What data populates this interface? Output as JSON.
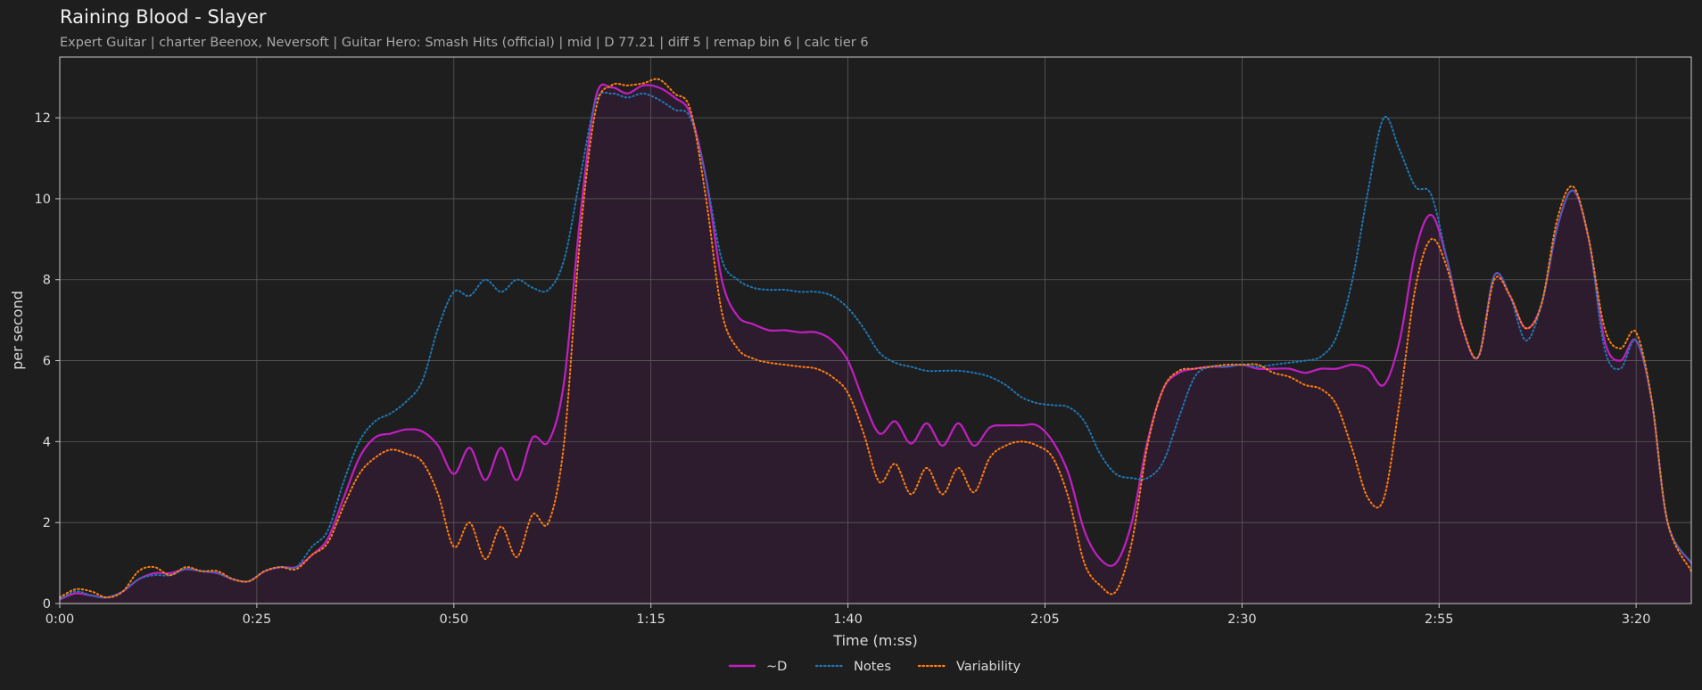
{
  "chart_data": {
    "type": "line",
    "title": "Raining Blood - Slayer",
    "subtitle": "Expert Guitar  |  charter Beenox,  Neversoft  |  Guitar Hero: Smash Hits (official)  |  mid  |  D 77.21  |  diff 5  |  remap bin 6  |  calc tier 6",
    "xlabel": "Time (m:ss)",
    "ylabel": "per second",
    "xlim": [
      0,
      207
    ],
    "ylim": [
      0,
      13.5
    ],
    "x_ticks": [
      0,
      25,
      50,
      75,
      100,
      125,
      150,
      175,
      200
    ],
    "x_tick_labels": [
      "0:00",
      "0:25",
      "0:50",
      "1:15",
      "1:40",
      "2:05",
      "2:30",
      "2:55",
      "3:20"
    ],
    "y_ticks": [
      0,
      2,
      4,
      6,
      8,
      10,
      12
    ],
    "y_tick_labels": [
      "0",
      "2",
      "4",
      "6",
      "8",
      "10",
      "12"
    ],
    "grid": true,
    "legend_position": "bottom-center",
    "colors": {
      "background": "#1e1e1e",
      "fill": "#2d1c2d",
      "grid": "#5a5a5a",
      "axis": "#c8c8c8",
      "text": "#dcdcdc",
      "subtitle": "#a8a8a8"
    },
    "series": [
      {
        "name": "~D",
        "color": "#c020c0",
        "style": "solid",
        "fill": true,
        "points": [
          [
            0,
            0.1
          ],
          [
            2,
            0.25
          ],
          [
            4,
            0.2
          ],
          [
            6,
            0.15
          ],
          [
            8,
            0.3
          ],
          [
            10,
            0.6
          ],
          [
            12,
            0.75
          ],
          [
            14,
            0.75
          ],
          [
            16,
            0.85
          ],
          [
            18,
            0.8
          ],
          [
            20,
            0.75
          ],
          [
            22,
            0.6
          ],
          [
            24,
            0.55
          ],
          [
            26,
            0.8
          ],
          [
            28,
            0.9
          ],
          [
            30,
            0.9
          ],
          [
            32,
            1.2
          ],
          [
            34,
            1.6
          ],
          [
            36,
            2.6
          ],
          [
            38,
            3.6
          ],
          [
            40,
            4.1
          ],
          [
            42,
            4.2
          ],
          [
            44,
            4.3
          ],
          [
            46,
            4.25
          ],
          [
            48,
            3.9
          ],
          [
            50,
            3.2
          ],
          [
            52,
            3.85
          ],
          [
            54,
            3.05
          ],
          [
            56,
            3.85
          ],
          [
            58,
            3.05
          ],
          [
            60,
            4.1
          ],
          [
            62,
            4.0
          ],
          [
            64,
            5.5
          ],
          [
            66,
            9.5
          ],
          [
            68,
            12.5
          ],
          [
            70,
            12.75
          ],
          [
            72,
            12.6
          ],
          [
            74,
            12.8
          ],
          [
            76,
            12.75
          ],
          [
            78,
            12.5
          ],
          [
            80,
            12.1
          ],
          [
            82,
            10.5
          ],
          [
            84,
            8.0
          ],
          [
            86,
            7.1
          ],
          [
            88,
            6.9
          ],
          [
            90,
            6.75
          ],
          [
            92,
            6.75
          ],
          [
            94,
            6.7
          ],
          [
            96,
            6.7
          ],
          [
            98,
            6.5
          ],
          [
            100,
            6.0
          ],
          [
            102,
            5.0
          ],
          [
            104,
            4.2
          ],
          [
            106,
            4.5
          ],
          [
            108,
            3.95
          ],
          [
            110,
            4.45
          ],
          [
            112,
            3.9
          ],
          [
            114,
            4.45
          ],
          [
            116,
            3.9
          ],
          [
            118,
            4.35
          ],
          [
            120,
            4.4
          ],
          [
            122,
            4.4
          ],
          [
            124,
            4.4
          ],
          [
            126,
            4.0
          ],
          [
            128,
            3.2
          ],
          [
            130,
            1.8
          ],
          [
            132,
            1.1
          ],
          [
            134,
            1.0
          ],
          [
            136,
            2.0
          ],
          [
            138,
            4.0
          ],
          [
            140,
            5.3
          ],
          [
            142,
            5.7
          ],
          [
            144,
            5.8
          ],
          [
            146,
            5.85
          ],
          [
            148,
            5.85
          ],
          [
            150,
            5.9
          ],
          [
            152,
            5.8
          ],
          [
            154,
            5.8
          ],
          [
            156,
            5.8
          ],
          [
            158,
            5.7
          ],
          [
            160,
            5.8
          ],
          [
            162,
            5.8
          ],
          [
            164,
            5.9
          ],
          [
            166,
            5.8
          ],
          [
            168,
            5.4
          ],
          [
            170,
            6.5
          ],
          [
            172,
            8.7
          ],
          [
            174,
            9.6
          ],
          [
            176,
            8.5
          ],
          [
            178,
            6.8
          ],
          [
            180,
            6.1
          ],
          [
            182,
            8.1
          ],
          [
            184,
            7.6
          ],
          [
            186,
            6.8
          ],
          [
            188,
            7.4
          ],
          [
            190,
            9.3
          ],
          [
            192,
            10.2
          ],
          [
            194,
            9.0
          ],
          [
            196,
            6.5
          ],
          [
            198,
            6.0
          ],
          [
            200,
            6.5
          ],
          [
            202,
            5.0
          ],
          [
            204,
            2.0
          ],
          [
            207,
            1.0
          ]
        ]
      },
      {
        "name": "Notes",
        "color": "#1f77b4",
        "style": "dotted",
        "fill": false,
        "points": [
          [
            0,
            0.1
          ],
          [
            2,
            0.3
          ],
          [
            4,
            0.2
          ],
          [
            6,
            0.15
          ],
          [
            8,
            0.3
          ],
          [
            10,
            0.6
          ],
          [
            12,
            0.7
          ],
          [
            14,
            0.7
          ],
          [
            16,
            0.85
          ],
          [
            18,
            0.8
          ],
          [
            20,
            0.75
          ],
          [
            22,
            0.6
          ],
          [
            24,
            0.55
          ],
          [
            26,
            0.8
          ],
          [
            28,
            0.9
          ],
          [
            30,
            0.9
          ],
          [
            32,
            1.4
          ],
          [
            34,
            1.8
          ],
          [
            36,
            3.0
          ],
          [
            38,
            4.0
          ],
          [
            40,
            4.5
          ],
          [
            42,
            4.7
          ],
          [
            44,
            5.0
          ],
          [
            46,
            5.5
          ],
          [
            48,
            6.8
          ],
          [
            50,
            7.7
          ],
          [
            52,
            7.6
          ],
          [
            54,
            8.0
          ],
          [
            56,
            7.7
          ],
          [
            58,
            8.0
          ],
          [
            60,
            7.8
          ],
          [
            62,
            7.75
          ],
          [
            64,
            8.5
          ],
          [
            66,
            10.5
          ],
          [
            68,
            12.4
          ],
          [
            70,
            12.6
          ],
          [
            72,
            12.5
          ],
          [
            74,
            12.6
          ],
          [
            76,
            12.45
          ],
          [
            78,
            12.2
          ],
          [
            80,
            12.0
          ],
          [
            82,
            10.5
          ],
          [
            84,
            8.5
          ],
          [
            86,
            8.0
          ],
          [
            88,
            7.8
          ],
          [
            90,
            7.75
          ],
          [
            92,
            7.75
          ],
          [
            94,
            7.7
          ],
          [
            96,
            7.7
          ],
          [
            98,
            7.6
          ],
          [
            100,
            7.3
          ],
          [
            102,
            6.8
          ],
          [
            104,
            6.2
          ],
          [
            106,
            5.95
          ],
          [
            108,
            5.85
          ],
          [
            110,
            5.75
          ],
          [
            112,
            5.75
          ],
          [
            114,
            5.75
          ],
          [
            116,
            5.7
          ],
          [
            118,
            5.6
          ],
          [
            120,
            5.4
          ],
          [
            122,
            5.1
          ],
          [
            124,
            4.95
          ],
          [
            126,
            4.9
          ],
          [
            128,
            4.85
          ],
          [
            130,
            4.5
          ],
          [
            132,
            3.7
          ],
          [
            134,
            3.2
          ],
          [
            136,
            3.1
          ],
          [
            138,
            3.1
          ],
          [
            140,
            3.5
          ],
          [
            142,
            4.6
          ],
          [
            144,
            5.6
          ],
          [
            146,
            5.85
          ],
          [
            148,
            5.85
          ],
          [
            150,
            5.9
          ],
          [
            152,
            5.85
          ],
          [
            154,
            5.9
          ],
          [
            156,
            5.95
          ],
          [
            158,
            6.0
          ],
          [
            160,
            6.1
          ],
          [
            162,
            6.6
          ],
          [
            164,
            8.0
          ],
          [
            166,
            10.2
          ],
          [
            168,
            12.0
          ],
          [
            170,
            11.2
          ],
          [
            172,
            10.3
          ],
          [
            174,
            10.1
          ],
          [
            176,
            8.5
          ],
          [
            178,
            6.8
          ],
          [
            180,
            6.1
          ],
          [
            182,
            8.1
          ],
          [
            184,
            7.6
          ],
          [
            186,
            6.5
          ],
          [
            188,
            7.4
          ],
          [
            190,
            9.3
          ],
          [
            192,
            10.2
          ],
          [
            194,
            9.0
          ],
          [
            196,
            6.3
          ],
          [
            198,
            5.8
          ],
          [
            200,
            6.5
          ],
          [
            202,
            5.0
          ],
          [
            204,
            2.0
          ],
          [
            207,
            1.0
          ]
        ]
      },
      {
        "name": "Variability",
        "color": "#ff7f0e",
        "style": "dotted",
        "fill": false,
        "points": [
          [
            0,
            0.15
          ],
          [
            2,
            0.35
          ],
          [
            4,
            0.3
          ],
          [
            6,
            0.15
          ],
          [
            8,
            0.3
          ],
          [
            10,
            0.8
          ],
          [
            12,
            0.9
          ],
          [
            14,
            0.7
          ],
          [
            16,
            0.9
          ],
          [
            18,
            0.8
          ],
          [
            20,
            0.8
          ],
          [
            22,
            0.6
          ],
          [
            24,
            0.55
          ],
          [
            26,
            0.8
          ],
          [
            28,
            0.9
          ],
          [
            30,
            0.85
          ],
          [
            32,
            1.2
          ],
          [
            34,
            1.5
          ],
          [
            36,
            2.4
          ],
          [
            38,
            3.2
          ],
          [
            40,
            3.6
          ],
          [
            42,
            3.8
          ],
          [
            44,
            3.7
          ],
          [
            46,
            3.5
          ],
          [
            48,
            2.7
          ],
          [
            50,
            1.4
          ],
          [
            52,
            2.0
          ],
          [
            54,
            1.1
          ],
          [
            56,
            1.9
          ],
          [
            58,
            1.15
          ],
          [
            60,
            2.2
          ],
          [
            62,
            2.0
          ],
          [
            64,
            4.0
          ],
          [
            66,
            9.0
          ],
          [
            68,
            12.2
          ],
          [
            70,
            12.8
          ],
          [
            72,
            12.8
          ],
          [
            74,
            12.85
          ],
          [
            76,
            12.95
          ],
          [
            78,
            12.6
          ],
          [
            80,
            12.2
          ],
          [
            82,
            10.0
          ],
          [
            84,
            7.2
          ],
          [
            86,
            6.3
          ],
          [
            88,
            6.05
          ],
          [
            90,
            5.95
          ],
          [
            92,
            5.9
          ],
          [
            94,
            5.85
          ],
          [
            96,
            5.8
          ],
          [
            98,
            5.6
          ],
          [
            100,
            5.2
          ],
          [
            102,
            4.2
          ],
          [
            104,
            3.0
          ],
          [
            106,
            3.45
          ],
          [
            108,
            2.7
          ],
          [
            110,
            3.35
          ],
          [
            112,
            2.7
          ],
          [
            114,
            3.35
          ],
          [
            116,
            2.75
          ],
          [
            118,
            3.6
          ],
          [
            120,
            3.9
          ],
          [
            122,
            4.0
          ],
          [
            124,
            3.9
          ],
          [
            126,
            3.6
          ],
          [
            128,
            2.6
          ],
          [
            130,
            1.0
          ],
          [
            132,
            0.45
          ],
          [
            134,
            0.3
          ],
          [
            136,
            1.5
          ],
          [
            138,
            3.9
          ],
          [
            140,
            5.3
          ],
          [
            142,
            5.75
          ],
          [
            144,
            5.8
          ],
          [
            146,
            5.85
          ],
          [
            148,
            5.9
          ],
          [
            150,
            5.9
          ],
          [
            152,
            5.9
          ],
          [
            154,
            5.7
          ],
          [
            156,
            5.6
          ],
          [
            158,
            5.4
          ],
          [
            160,
            5.3
          ],
          [
            162,
            4.9
          ],
          [
            164,
            3.8
          ],
          [
            166,
            2.6
          ],
          [
            168,
            2.6
          ],
          [
            170,
            5.0
          ],
          [
            172,
            7.8
          ],
          [
            174,
            9.0
          ],
          [
            176,
            8.3
          ],
          [
            178,
            6.8
          ],
          [
            180,
            6.1
          ],
          [
            182,
            8.0
          ],
          [
            184,
            7.6
          ],
          [
            186,
            6.8
          ],
          [
            188,
            7.4
          ],
          [
            190,
            9.5
          ],
          [
            192,
            10.3
          ],
          [
            194,
            9.0
          ],
          [
            196,
            6.8
          ],
          [
            198,
            6.3
          ],
          [
            200,
            6.7
          ],
          [
            202,
            5.0
          ],
          [
            204,
            2.0
          ],
          [
            207,
            0.8
          ]
        ]
      }
    ]
  }
}
